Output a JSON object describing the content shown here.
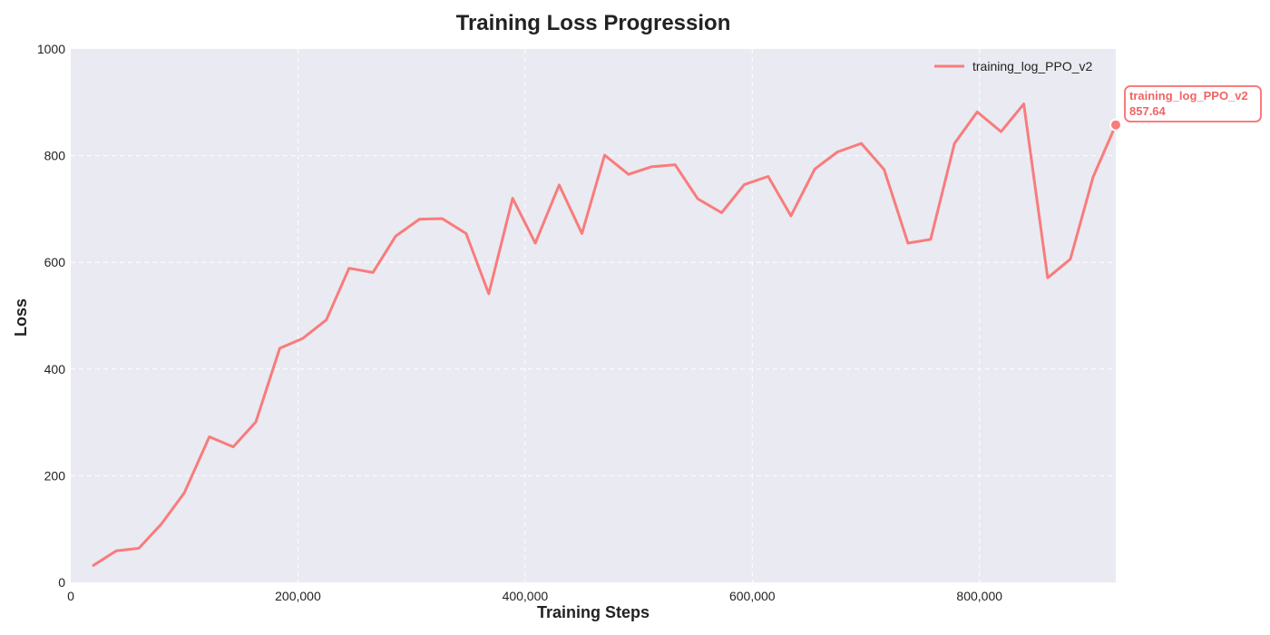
{
  "chart_data": {
    "type": "line",
    "title": "Training Loss Progression",
    "xlabel": "Training Steps",
    "ylabel": "Loss",
    "xlim": [
      0,
      920000
    ],
    "ylim": [
      0,
      1000
    ],
    "xticks": [
      0,
      200000,
      400000,
      600000,
      800000
    ],
    "xtick_labels": [
      "0",
      "200,000",
      "400,000",
      "600,000",
      "800,000"
    ],
    "yticks": [
      0,
      200,
      400,
      600,
      800,
      1000
    ],
    "ytick_labels": [
      "0",
      "200",
      "400",
      "600",
      "800",
      "1000"
    ],
    "grid": true,
    "legend_position": "top-right",
    "series": [
      {
        "name": "training_log_PPO_v2",
        "color": "#f87c7c",
        "x": [
          20000,
          40000,
          60000,
          80000,
          100000,
          122000,
          143000,
          163000,
          184000,
          204000,
          225000,
          245000,
          266000,
          286000,
          307000,
          327000,
          348000,
          368000,
          389000,
          409000,
          430000,
          450000,
          470000,
          491000,
          511000,
          532000,
          552000,
          573000,
          593000,
          614000,
          634000,
          655000,
          675000,
          696000,
          716000,
          737000,
          757000,
          778000,
          798000,
          819000,
          839000,
          860000,
          880000,
          900000,
          920000
        ],
        "values": [
          32,
          59,
          64,
          110,
          168,
          273,
          254,
          301,
          439,
          457,
          492,
          589,
          581,
          649,
          681,
          682,
          654,
          541,
          720,
          636,
          745,
          654,
          801,
          765,
          779,
          783,
          719,
          693,
          746,
          761,
          687,
          775,
          807,
          823,
          774,
          636,
          643,
          823,
          882,
          845,
          897,
          571,
          606,
          760,
          857.64
        ]
      }
    ],
    "annotation": {
      "series": "training_log_PPO_v2",
      "value_label": "857.64"
    }
  }
}
